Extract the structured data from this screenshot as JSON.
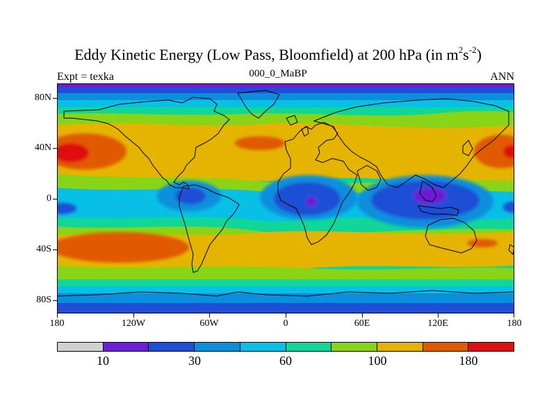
{
  "header": {
    "title_main": "Eddy Kinetic Energy (Low Pass, Bloomfield) at 200 hPa (in m",
    "title_sup1": "2",
    "title_mid": "s",
    "title_sup2": "-2",
    "title_end": ")",
    "left_string": "Expt = texka",
    "center_string": "000_0_MaBP",
    "right_string": "ANN"
  },
  "axes": {
    "lat_labels": [
      "80N",
      "40N",
      "0",
      "40S",
      "80S"
    ],
    "lon_labels": [
      "180",
      "120W",
      "60W",
      "0",
      "60E",
      "120E",
      "180"
    ]
  },
  "colorbar": {
    "colors": [
      "#d0d0d0",
      "#6c1fd8",
      "#1f4fd6",
      "#0a8fdd",
      "#08bfe6",
      "#10d699",
      "#8ad417",
      "#e4b400",
      "#e15a00",
      "#e01010"
    ],
    "labels": [
      "10",
      "30",
      "60",
      "100",
      "180"
    ]
  },
  "map_fields": {
    "levels": [
      "deep-purple",
      "blue",
      "mid-blue",
      "cyan",
      "green",
      "yellow-green",
      "orange-yellow",
      "orange",
      "red"
    ]
  }
}
